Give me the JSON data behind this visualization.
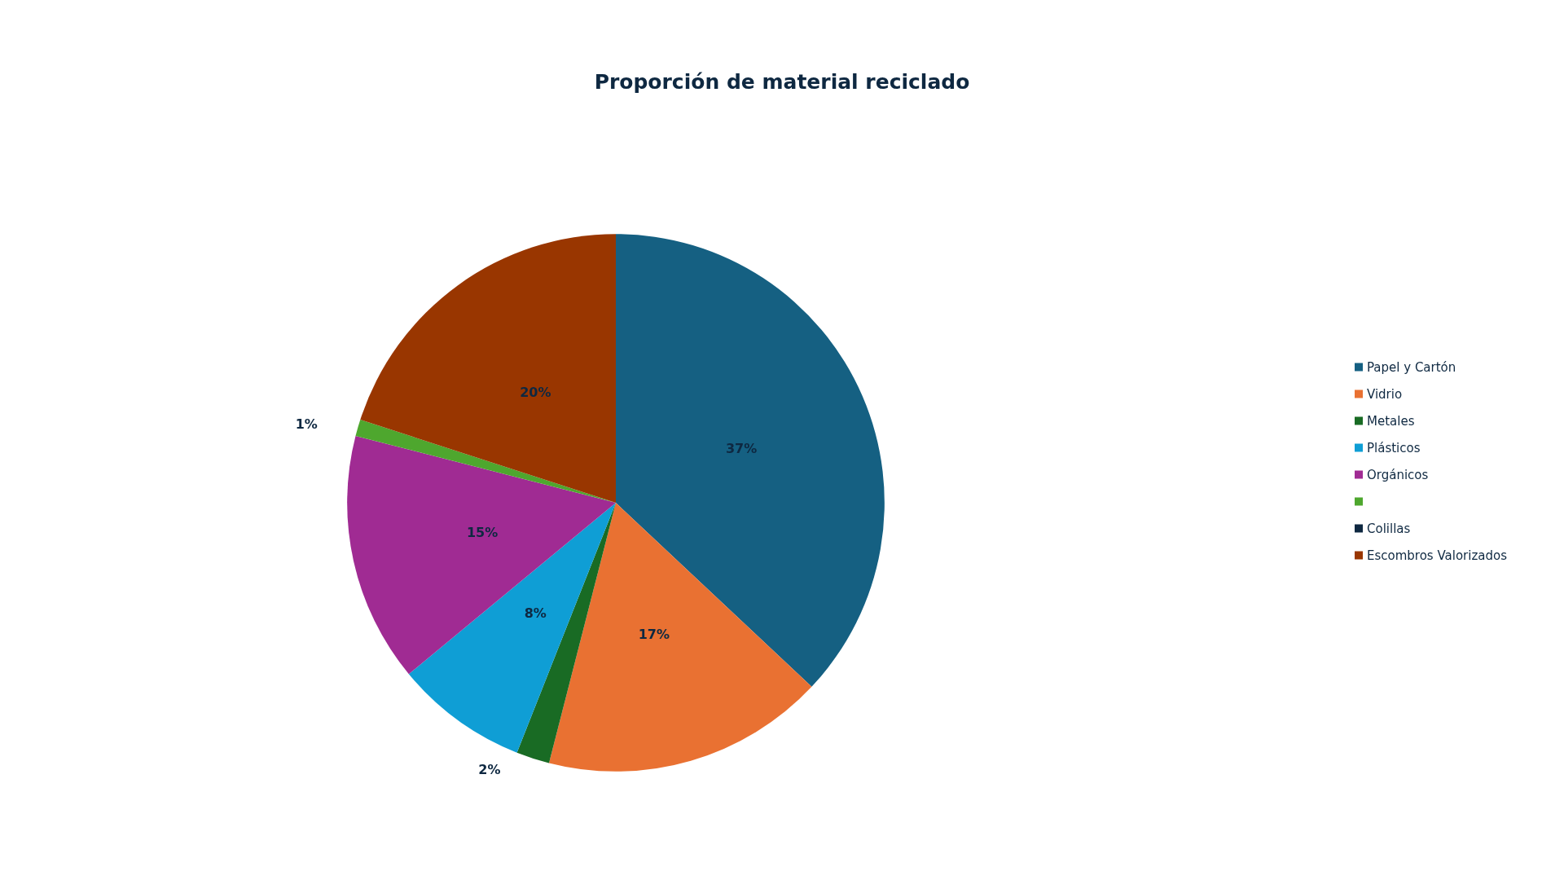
{
  "chart_data": {
    "type": "pie",
    "title": "Proporción de material reciclado",
    "categories": [
      "Papel y Cartón",
      "Vidrio",
      "Metales",
      "Plásticos",
      "Orgánicos",
      null,
      "Colillas",
      "Escombros Valorizados"
    ],
    "values": [
      37,
      17,
      2,
      8,
      15,
      1,
      0,
      20
    ],
    "colors": [
      "#156082",
      "#e97132",
      "#196b24",
      "#0f9ed5",
      "#a02b93",
      "#4ea72e",
      "#0e2841",
      "#993600"
    ],
    "value_labels": [
      "37%",
      "17%",
      "2%",
      "8%",
      "15%",
      "1%",
      null,
      "20%"
    ],
    "legend": "right"
  }
}
